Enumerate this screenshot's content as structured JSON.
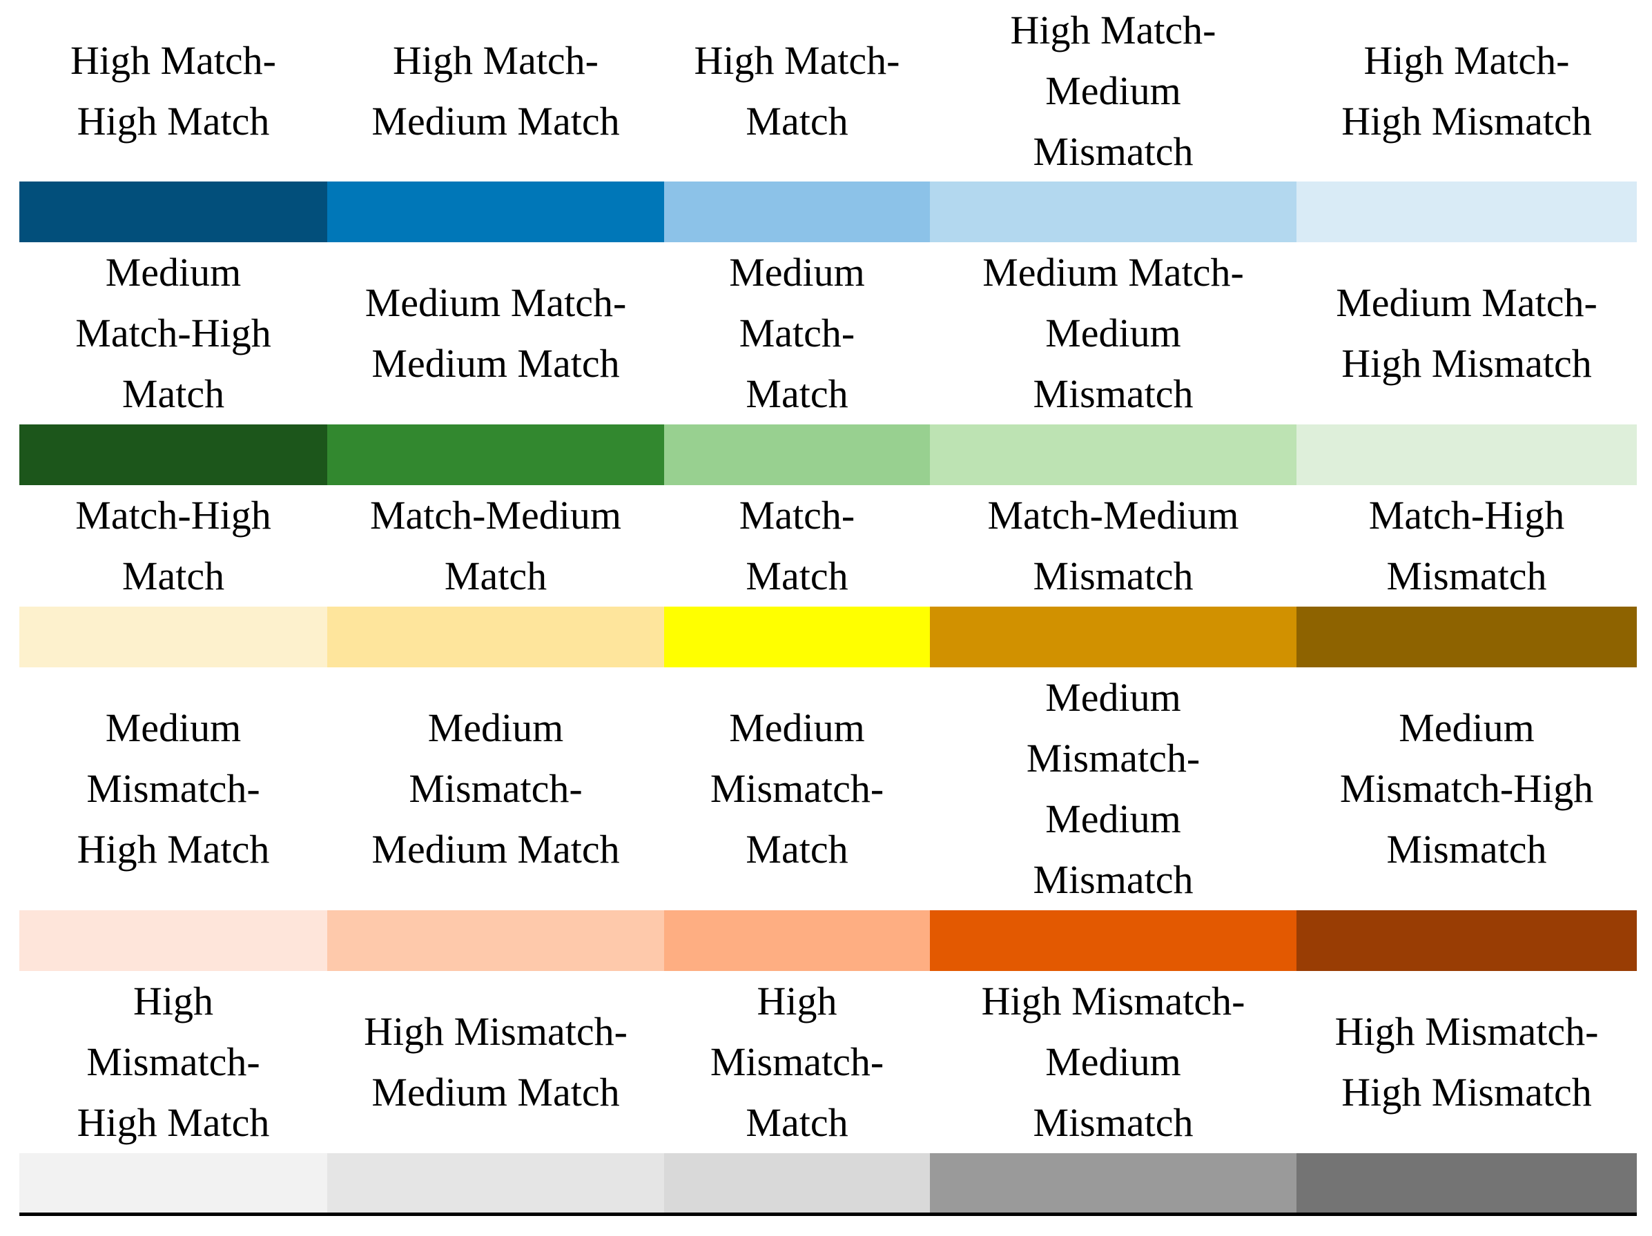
{
  "rows": [
    {
      "labels": [
        "High Match-\nHigh Match",
        "High Match-\nMedium Match",
        "High Match-\nMatch",
        "High Match-\nMedium\nMismatch",
        "High Match-\nHigh Mismatch"
      ],
      "colors": [
        "#024f7b",
        "#0077b8",
        "#8cc2e8",
        "#b3d8ef",
        "#d9ebf6"
      ]
    },
    {
      "labels": [
        "Medium\nMatch-High\nMatch",
        "Medium Match-\nMedium Match",
        "Medium\nMatch-\nMatch",
        "Medium Match-\nMedium\nMismatch",
        "Medium Match-\nHigh Mismatch"
      ],
      "colors": [
        "#1c561b",
        "#32882f",
        "#98d090",
        "#bde3b3",
        "#deefda"
      ]
    },
    {
      "labels": [
        "Match-High\nMatch",
        "Match-Medium\nMatch",
        "Match-\nMatch",
        "Match-Medium\nMismatch",
        "Match-High\nMismatch"
      ],
      "colors": [
        "#fdf1cd",
        "#fee59c",
        "#ffff00",
        "#d19100",
        "#8e6300"
      ]
    },
    {
      "labels": [
        "Medium\nMismatch-\nHigh Match",
        "Medium\nMismatch-\nMedium Match",
        "Medium\nMismatch-\nMatch",
        "Medium\nMismatch-\nMedium\nMismatch",
        "Medium\nMismatch-High\nMismatch"
      ],
      "colors": [
        "#fee5da",
        "#fec9ab",
        "#feae82",
        "#e35901",
        "#993d04"
      ]
    },
    {
      "labels": [
        "High\nMismatch-\nHigh Match",
        "High Mismatch-\nMedium Match",
        "High\nMismatch-\nMatch",
        "High Mismatch-\nMedium\nMismatch",
        "High Mismatch-\nHigh Mismatch"
      ],
      "colors": [
        "#f2f2f2",
        "#e5e5e5",
        "#d9d9d9",
        "#9a9a9a",
        "#747474"
      ]
    }
  ]
}
